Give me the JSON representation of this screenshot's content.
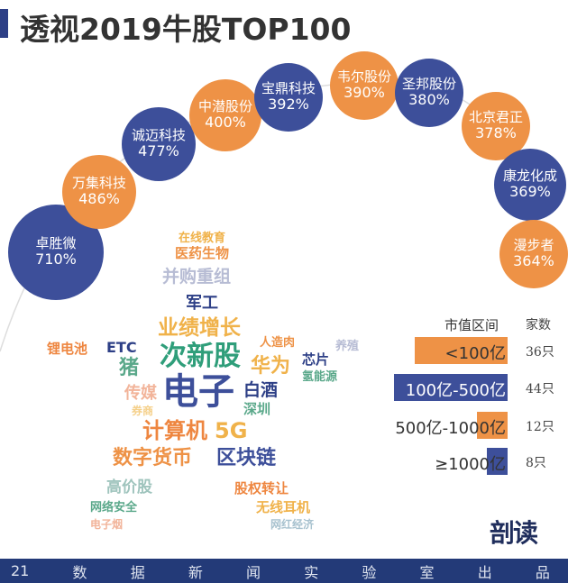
{
  "title": "透视2019牛股TOP100",
  "colors": {
    "navy": "#3d4f9a",
    "orange": "#ee9246"
  },
  "stocks": [
    {
      "name": "卓胜微",
      "gain": "710%",
      "color": "navy"
    },
    {
      "name": "万集科技",
      "gain": "486%",
      "color": "orange"
    },
    {
      "name": "诚迈科技",
      "gain": "477%",
      "color": "navy"
    },
    {
      "name": "中潜股份",
      "gain": "400%",
      "color": "orange"
    },
    {
      "name": "宝鼎科技",
      "gain": "392%",
      "color": "navy"
    },
    {
      "name": "韦尔股份",
      "gain": "390%",
      "color": "orange"
    },
    {
      "name": "圣邦股份",
      "gain": "380%",
      "color": "navy"
    },
    {
      "name": "北京君正",
      "gain": "378%",
      "color": "orange"
    },
    {
      "name": "康龙化成",
      "gain": "369%",
      "color": "navy"
    },
    {
      "name": "漫步者",
      "gain": "364%",
      "color": "orange"
    }
  ],
  "wordcloud": [
    "在线教育",
    "医药生物",
    "并购重组",
    "军工",
    "业绩增长",
    "锂电池",
    "ETC",
    "人造肉",
    "养殖",
    "次新股",
    "芯片",
    "猪",
    "华为",
    "氢能源",
    "传媒",
    "电子",
    "白酒",
    "券商",
    "深圳",
    "计算机",
    "5G",
    "数字货币",
    "区块链",
    "高价股",
    "股权转让",
    "网络安全",
    "无线耳机",
    "电子烟",
    "网红经济"
  ],
  "chart_data": {
    "type": "bar",
    "orientation": "horizontal",
    "xlabel": "市值区间",
    "ylabel": "家数",
    "categories": [
      "<100亿",
      "100亿-500亿",
      "500亿-1000亿",
      "≥1000亿"
    ],
    "values": [
      36,
      44,
      12,
      8
    ],
    "value_labels": [
      "36只",
      "44只",
      "12只",
      "8只"
    ],
    "colors": [
      "#ee9246",
      "#3d4f9a",
      "#ee9246",
      "#3d4f9a"
    ]
  },
  "logo": "剖读",
  "footer": [
    "21",
    "数",
    "据",
    "新",
    "闻",
    "实",
    "验",
    "室",
    "出",
    "品"
  ]
}
